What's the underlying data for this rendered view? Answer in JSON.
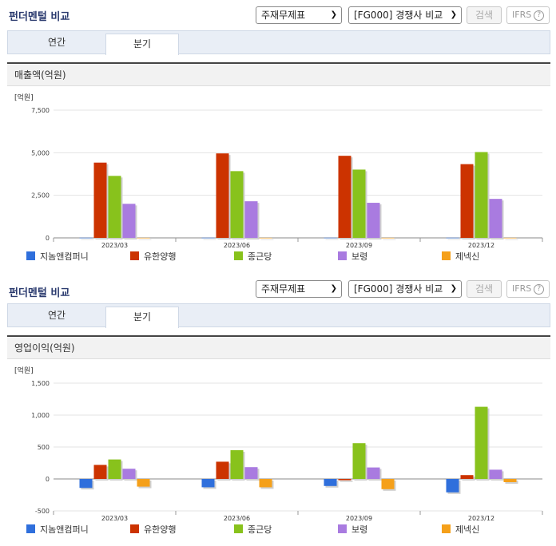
{
  "header": {
    "title": "펀더멘털 비교",
    "select_report": "주재무제표",
    "select_compare": "[FG000] 경쟁사 비교",
    "search_label": "검색",
    "ifrs_label": "IFRS",
    "help_label": "?"
  },
  "tabs": [
    "연간",
    "분기"
  ],
  "colors": {
    "지놈앤컴퍼니": "#2f6fdc",
    "유한양행": "#cc3300",
    "종근당": "#88c21c",
    "보령": "#a97be0",
    "제넥신": "#f5a01a"
  },
  "chart_data": [
    {
      "type": "bar",
      "title": "매출액(억원)",
      "unit_label": "[억원]",
      "categories": [
        "2023/03",
        "2023/06",
        "2023/09",
        "2023/12"
      ],
      "ylim": [
        0,
        7500
      ],
      "yticks": [
        0,
        2500,
        5000,
        7500
      ],
      "ytick_labels": [
        "0",
        "2,500",
        "5,000",
        "7,500"
      ],
      "grid": true,
      "legend": "bottom",
      "series": [
        {
          "name": "지놈앤컴퍼니",
          "values": [
            10,
            10,
            10,
            10
          ]
        },
        {
          "name": "유한양행",
          "values": [
            4420,
            4960,
            4820,
            4330
          ]
        },
        {
          "name": "종근당",
          "values": [
            3640,
            3920,
            4010,
            5040
          ]
        },
        {
          "name": "보령",
          "values": [
            2000,
            2150,
            2060,
            2290
          ]
        },
        {
          "name": "제넥신",
          "values": [
            5,
            5,
            5,
            5
          ]
        }
      ]
    },
    {
      "type": "bar",
      "title": "영업이익(억원)",
      "unit_label": "[억원]",
      "categories": [
        "2023/03",
        "2023/06",
        "2023/09",
        "2023/12"
      ],
      "ylim": [
        -500,
        1500
      ],
      "yticks": [
        -500,
        0,
        500,
        1000,
        1500
      ],
      "ytick_labels": [
        "-500",
        "0",
        "500",
        "1,000",
        "1,500"
      ],
      "grid": true,
      "legend": "bottom",
      "series": [
        {
          "name": "지놈앤컴퍼니",
          "values": [
            -140,
            -130,
            -110,
            -210
          ]
        },
        {
          "name": "유한양행",
          "values": [
            220,
            270,
            -20,
            60
          ]
        },
        {
          "name": "종근당",
          "values": [
            305,
            450,
            560,
            1130
          ]
        },
        {
          "name": "보령",
          "values": [
            160,
            185,
            180,
            145
          ]
        },
        {
          "name": "제넥신",
          "values": [
            -120,
            -130,
            -160,
            -50
          ]
        }
      ]
    }
  ]
}
